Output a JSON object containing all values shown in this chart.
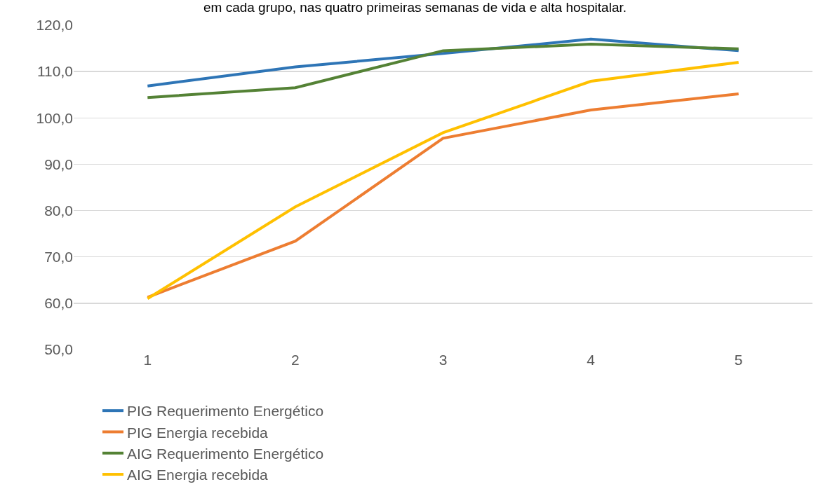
{
  "chart_data": {
    "type": "line",
    "title": "em cada grupo, nas quatro primeiras semanas de vida e alta hospitalar.",
    "categories": [
      "1",
      "2",
      "3",
      "4",
      "5"
    ],
    "series": [
      {
        "name": "PIG Requerimento Energético",
        "color": "#2e75b6",
        "values": [
          106.9,
          111.0,
          113.9,
          117.0,
          114.5
        ]
      },
      {
        "name": "PIG Energia recebida",
        "color": "#ed7d31",
        "values": [
          61.3,
          73.4,
          95.6,
          101.7,
          105.2
        ]
      },
      {
        "name": "AIG Requerimento Energético",
        "color": "#548235",
        "values": [
          104.4,
          106.5,
          114.5,
          115.9,
          114.9
        ]
      },
      {
        "name": "AIG Energia recebida",
        "color": "#ffc000",
        "values": [
          61.0,
          80.8,
          96.8,
          107.9,
          112.0
        ]
      }
    ],
    "ylim": [
      50,
      120
    ],
    "yticks": [
      {
        "value": 50,
        "label": "50,0"
      },
      {
        "value": 60,
        "label": "60,0"
      },
      {
        "value": 70,
        "label": "70,0"
      },
      {
        "value": 80,
        "label": "80,0"
      },
      {
        "value": 90,
        "label": "90,0"
      },
      {
        "value": 100,
        "label": "100,0"
      },
      {
        "value": 110,
        "label": "110,0"
      },
      {
        "value": 120,
        "label": "120,0"
      }
    ],
    "grid": "y",
    "legend": "bottom",
    "marker": "none",
    "line_style": "solid"
  }
}
